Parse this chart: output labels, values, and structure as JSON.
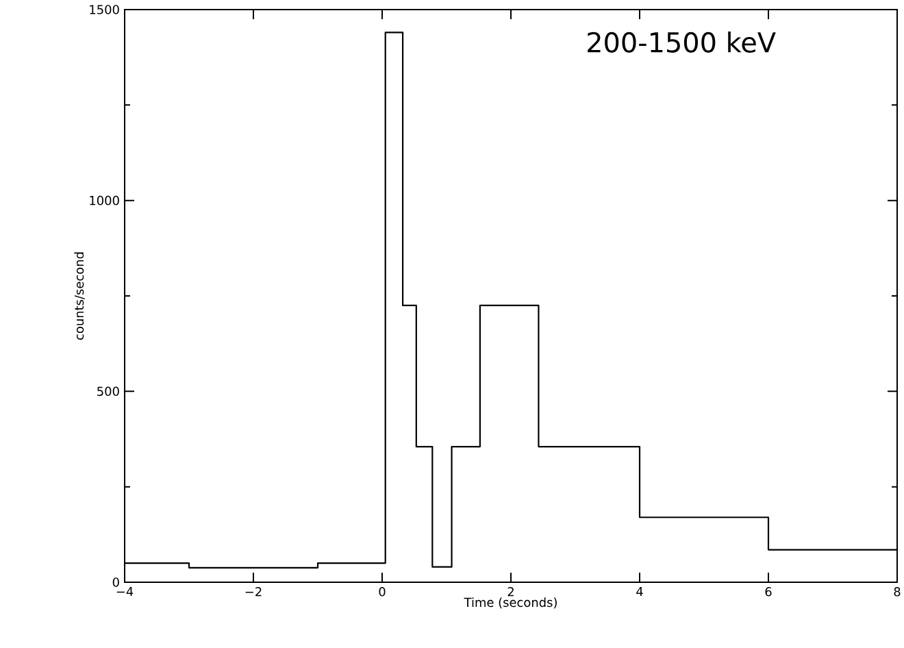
{
  "chart_data": {
    "type": "histogram",
    "bins": [
      -4,
      -3,
      -1,
      0.05,
      0.32,
      0.53,
      0.78,
      1.08,
      1.52,
      2.43,
      4,
      6,
      8
    ],
    "values": [
      50,
      38,
      50,
      1440,
      725,
      355,
      40,
      355,
      725,
      355,
      170,
      85
    ],
    "color": "#000000",
    "xlabel": "Time (seconds)",
    "ylabel": "counts/second",
    "annotations": [
      "200-1500 keV"
    ],
    "xlim": [
      -4,
      8
    ],
    "ylim": [
      0,
      1500
    ],
    "xticks": [
      {
        "value": -4,
        "label": "−4"
      },
      {
        "value": -2,
        "label": "−2"
      },
      0,
      2,
      4,
      6,
      8
    ],
    "yticks": [
      0,
      500,
      1000,
      1500
    ]
  }
}
